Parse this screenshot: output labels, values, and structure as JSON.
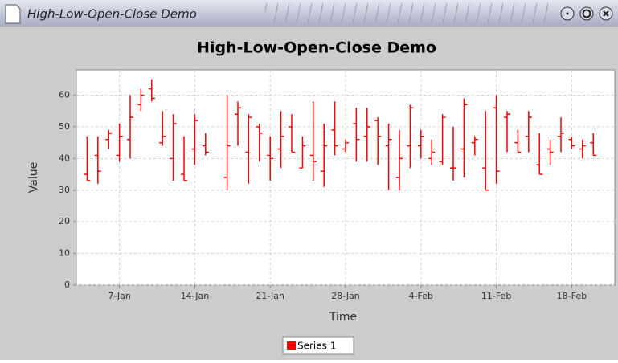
{
  "window_title": "High-Low-Open-Close Demo",
  "chart_data": {
    "type": "hloc",
    "title": "High-Low-Open-Close Demo",
    "x_label": "Time",
    "y_label": "Value",
    "x": [
      "4-Jan",
      "5-Jan",
      "6-Jan",
      "7-Jan",
      "8-Jan",
      "9-Jan",
      "10-Jan",
      "11-Jan",
      "12-Jan",
      "13-Jan",
      "14-Jan",
      "15-Jan",
      "17-Jan",
      "18-Jan",
      "19-Jan",
      "20-Jan",
      "21-Jan",
      "22-Jan",
      "23-Jan",
      "24-Jan",
      "25-Jan",
      "26-Jan",
      "27-Jan",
      "28-Jan",
      "29-Jan",
      "30-Jan",
      "31-Jan",
      "1-Feb",
      "2-Feb",
      "3-Feb",
      "4-Feb",
      "5-Feb",
      "6-Feb",
      "7-Feb",
      "8-Feb",
      "9-Feb",
      "10-Feb",
      "11-Feb",
      "12-Feb",
      "13-Feb",
      "14-Feb",
      "15-Feb",
      "16-Feb",
      "17-Feb",
      "18-Feb",
      "19-Feb",
      "20-Feb"
    ],
    "series": [
      {
        "name": "Series 1",
        "color": "#ff0000",
        "high": [
          47,
          47,
          49,
          51,
          60,
          62,
          65,
          55,
          54,
          47,
          54,
          48,
          60,
          58,
          54,
          51,
          47,
          55,
          54,
          47,
          58,
          51,
          58,
          46,
          56,
          56,
          53,
          51,
          49,
          57,
          49,
          46,
          54,
          50,
          59,
          47,
          55,
          60,
          55,
          49,
          55,
          48,
          46,
          53,
          47,
          46,
          48
        ],
        "low": [
          33,
          32,
          43,
          39,
          40,
          55,
          58,
          44,
          33,
          33,
          38,
          41,
          30,
          44,
          32,
          39,
          33,
          37,
          42,
          37,
          33,
          31,
          41,
          42,
          39,
          39,
          38,
          30,
          30,
          37,
          40,
          38,
          38,
          33,
          34,
          41,
          30,
          32,
          42,
          42,
          42,
          35,
          38,
          42,
          43,
          40,
          41
        ],
        "open": [
          35,
          41,
          46,
          41,
          46,
          57,
          62,
          45,
          40,
          35,
          43,
          44,
          34,
          54,
          42,
          50,
          41,
          43,
          50,
          37,
          41,
          36,
          49,
          43,
          51,
          47,
          52,
          44,
          34,
          44,
          44,
          40,
          39,
          37,
          43,
          45,
          37,
          56,
          53,
          45,
          47,
          38,
          43,
          47,
          46,
          43,
          45
        ],
        "close": [
          33,
          36,
          48,
          47,
          53,
          60,
          59,
          47,
          51,
          33,
          52,
          42,
          44,
          56,
          53,
          48,
          40,
          47,
          42,
          44,
          39,
          44,
          44,
          45,
          46,
          50,
          47,
          46,
          40,
          56,
          47,
          42,
          53,
          37,
          57,
          46,
          30,
          36,
          54,
          42,
          53,
          35,
          42,
          48,
          44,
          44,
          41
        ]
      }
    ],
    "xlim": [
      "3-Jan",
      "22-Feb"
    ],
    "xticks": [
      "7-Jan",
      "14-Jan",
      "21-Jan",
      "28-Jan",
      "4-Feb",
      "11-Feb",
      "18-Feb"
    ],
    "ylim": [
      0,
      68
    ],
    "yticks": [
      0,
      10,
      20,
      30,
      40,
      50,
      60
    ],
    "grid": true,
    "legend": "bottom"
  }
}
